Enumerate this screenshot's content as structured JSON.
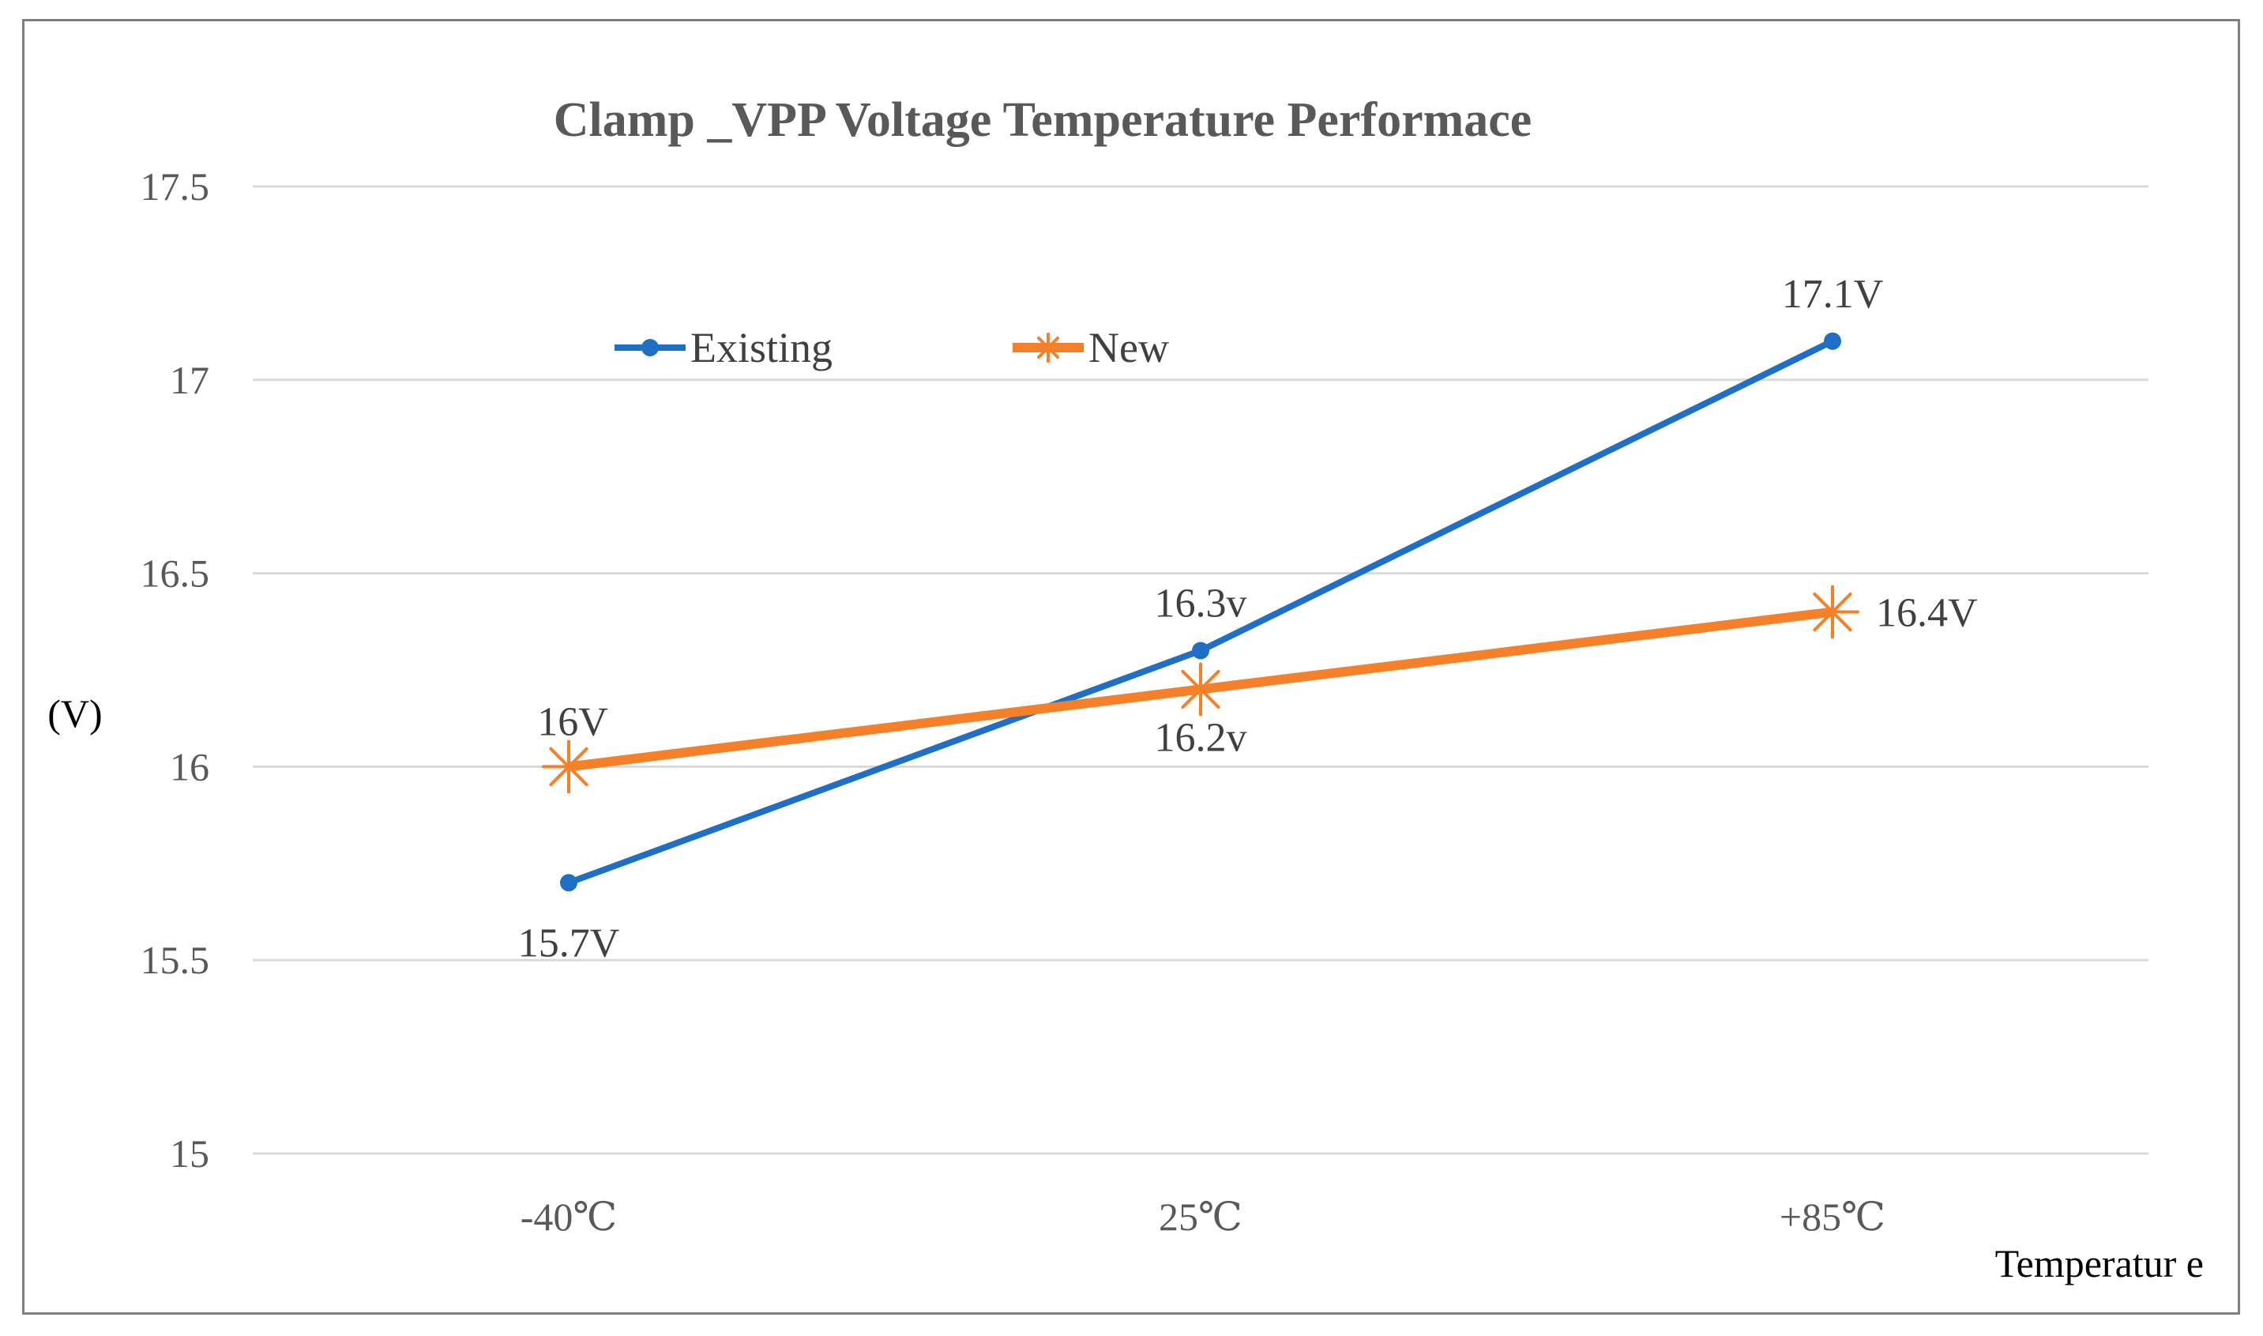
{
  "chart_data": {
    "type": "line",
    "title": "Clamp _VPP Voltage Temperature Performace",
    "xlabel": "Temperatur e",
    "ylabel": "(V)",
    "categories": [
      "-40℃",
      "25℃",
      "+85℃"
    ],
    "ylim": [
      15,
      17.5
    ],
    "yticks": [
      "15",
      "15.5",
      "16",
      "16.5",
      "17",
      "17.5"
    ],
    "grid": true,
    "legend_position": "top-left",
    "series": [
      {
        "name": "Existing",
        "color": "#1f6fc6",
        "marker": "circle",
        "values": [
          15.7,
          16.3,
          17.1
        ],
        "labels": [
          "15.7V",
          "16.3v",
          "17.1V"
        ]
      },
      {
        "name": "New",
        "color": "#f5802a",
        "marker": "star",
        "values": [
          16.0,
          16.2,
          16.4
        ],
        "labels": [
          "16V",
          "16.2v",
          "16.4V"
        ]
      }
    ]
  }
}
